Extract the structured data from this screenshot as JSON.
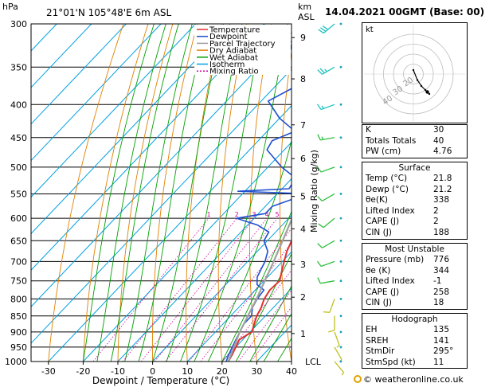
{
  "chart_data": {
    "type": "line",
    "title": "21°01'N  105°48'E  6m  ASL",
    "xlabel": "Dewpoint / Temperature (°C)",
    "ylabel": "hPa",
    "right_label_km": "km",
    "right_label_asl": "ASL",
    "mixing_axis_label": "Mixing Ratio (g/kg)",
    "xlim": [
      -35,
      40
    ],
    "ylim": [
      1000,
      300
    ],
    "x_ticks": [
      -30,
      -20,
      -10,
      0,
      10,
      20,
      30,
      40
    ],
    "pressure_ticks": [
      300,
      350,
      400,
      450,
      500,
      550,
      600,
      650,
      700,
      750,
      800,
      850,
      900,
      950,
      1000
    ],
    "km_ticks": [
      {
        "km": "1",
        "p": 905
      },
      {
        "km": "2",
        "p": 795
      },
      {
        "km": "3",
        "p": 707
      },
      {
        "km": "4",
        "p": 623
      },
      {
        "km": "5",
        "p": 555
      },
      {
        "km": "6",
        "p": 485
      },
      {
        "km": "7",
        "p": 430
      },
      {
        "km": "8",
        "p": 365
      },
      {
        "km": "9",
        "p": 315
      }
    ],
    "lcl_label": "LCL",
    "lcl_p": 1003,
    "mixing_ratio_labels": [
      "1",
      "2",
      "3",
      "4",
      "5",
      "8",
      "10",
      "15",
      "20",
      "25"
    ],
    "mixing_ratio_values": [
      1,
      2,
      3,
      4,
      5,
      8,
      10,
      15,
      20,
      25
    ],
    "legend": [
      "Temperature",
      "Dewpoint",
      "Parcel Trajectory",
      "Dry Adiabat",
      "Wet Adiabat",
      "Isotherm",
      "Mixing Ratio"
    ],
    "series": [
      {
        "name": "Temperature",
        "color": "#e03030",
        "points": [
          [
            1000,
            21.8
          ],
          [
            975,
            21.0
          ],
          [
            950,
            20.0
          ],
          [
            925,
            19.0
          ],
          [
            900,
            20.5
          ],
          [
            875,
            19.0
          ],
          [
            850,
            17.5
          ],
          [
            825,
            16.5
          ],
          [
            800,
            15.0
          ],
          [
            775,
            14.2
          ],
          [
            750,
            14.5
          ],
          [
            725,
            12.5
          ],
          [
            700,
            10.5
          ],
          [
            675,
            8.5
          ],
          [
            650,
            7.0
          ],
          [
            625,
            5.0
          ],
          [
            600,
            3.5
          ],
          [
            575,
            2.0
          ],
          [
            550,
            0.5
          ],
          [
            525,
            -1.5
          ],
          [
            500,
            -3.5
          ],
          [
            475,
            -6.0
          ],
          [
            450,
            -9.0
          ],
          [
            425,
            -11.5
          ],
          [
            400,
            -14.0
          ],
          [
            375,
            -18.0
          ],
          [
            350,
            -22.0
          ],
          [
            325,
            -26.0
          ],
          [
            300,
            -31.0
          ]
        ]
      },
      {
        "name": "Dewpoint",
        "color": "#2050d0",
        "points": [
          [
            1000,
            21.2
          ],
          [
            975,
            20.0
          ],
          [
            950,
            19.0
          ],
          [
            925,
            18.0
          ],
          [
            900,
            17.0
          ],
          [
            875,
            16.0
          ],
          [
            850,
            16.0
          ],
          [
            825,
            14.0
          ],
          [
            800,
            13.0
          ],
          [
            775,
            12.5
          ],
          [
            760,
            9.0
          ],
          [
            740,
            7.0
          ],
          [
            700,
            5.0
          ],
          [
            675,
            3.0
          ],
          [
            650,
            -1.0
          ],
          [
            630,
            -2.0
          ],
          [
            615,
            -7.0
          ],
          [
            600,
            -15.0
          ],
          [
            590,
            -8.0
          ],
          [
            575,
            -8.0
          ],
          [
            560,
            -4.0
          ],
          [
            550,
            -1.0
          ],
          [
            545,
            -22.0
          ],
          [
            540,
            -8.0
          ],
          [
            520,
            -9.0
          ],
          [
            500,
            -16.0
          ],
          [
            470,
            -25.0
          ],
          [
            455,
            -26.0
          ],
          [
            440,
            -22.0
          ],
          [
            420,
            -30.0
          ],
          [
            395,
            -38.0
          ],
          [
            360,
            -31.0
          ],
          [
            340,
            -42.0
          ],
          [
            320,
            -48.0
          ],
          [
            315,
            -40.0
          ],
          [
            305,
            -47.0
          ],
          [
            300,
            -46.0
          ]
        ]
      },
      {
        "name": "Parcel Trajectory",
        "color": "#a0a0a0",
        "points": [
          [
            1000,
            21.8
          ],
          [
            900,
            17.0
          ],
          [
            800,
            12.8
          ],
          [
            700,
            7.5
          ],
          [
            600,
            1.0
          ],
          [
            500,
            -7.0
          ],
          [
            450,
            -12.0
          ],
          [
            400,
            -17.5
          ],
          [
            350,
            -24.0
          ],
          [
            300,
            -32.0
          ]
        ]
      }
    ],
    "wind_barbs": [
      {
        "p": 300,
        "speed_kt": 30,
        "dir": 230
      },
      {
        "p": 350,
        "speed_kt": 25,
        "dir": 240
      },
      {
        "p": 400,
        "speed_kt": 15,
        "dir": 250
      },
      {
        "p": 450,
        "speed_kt": 15,
        "dir": 260
      },
      {
        "p": 500,
        "speed_kt": 10,
        "dir": 250
      },
      {
        "p": 550,
        "speed_kt": 10,
        "dir": 240
      },
      {
        "p": 600,
        "speed_kt": 10,
        "dir": 230
      },
      {
        "p": 650,
        "speed_kt": 10,
        "dir": 240
      },
      {
        "p": 700,
        "speed_kt": 10,
        "dir": 250
      },
      {
        "p": 750,
        "speed_kt": 10,
        "dir": 260
      },
      {
        "p": 800,
        "speed_kt": 10,
        "dir": 200
      },
      {
        "p": 850,
        "speed_kt": 10,
        "dir": 180
      },
      {
        "p": 900,
        "speed_kt": 5,
        "dir": 160
      },
      {
        "p": 950,
        "speed_kt": 5,
        "dir": 150
      },
      {
        "p": 1000,
        "speed_kt": 5,
        "dir": 140
      }
    ]
  },
  "header": {
    "datetime": "14.04.2021  00GMT  (Base: 00)"
  },
  "hodograph": {
    "label": "kt",
    "ring_labels": [
      "20",
      "30",
      "40"
    ],
    "trace_uv": [
      [
        0,
        2
      ],
      [
        2,
        -3
      ],
      [
        4,
        -6
      ],
      [
        6,
        -8
      ],
      [
        8,
        -10
      ]
    ],
    "storm_uv": [
      7,
      -9
    ]
  },
  "indices": {
    "rows": [
      {
        "label": "K",
        "value": "30"
      },
      {
        "label": "Totals Totals",
        "value": "40"
      },
      {
        "label": "PW (cm)",
        "value": "4.76"
      }
    ]
  },
  "surface": {
    "title": "Surface",
    "rows": [
      {
        "label": "Temp (°C)",
        "value": "21.8"
      },
      {
        "label": "Dewp (°C)",
        "value": "21.2"
      },
      {
        "label": "θe(K)",
        "value": "338"
      },
      {
        "label": "Lifted Index",
        "value": "2"
      },
      {
        "label": "CAPE (J)",
        "value": "2"
      },
      {
        "label": "CIN (J)",
        "value": "188"
      }
    ]
  },
  "most_unstable": {
    "title": "Most Unstable",
    "rows": [
      {
        "label": "Pressure (mb)",
        "value": "776"
      },
      {
        "label": "θe (K)",
        "value": "344"
      },
      {
        "label": "Lifted Index",
        "value": "-1"
      },
      {
        "label": "CAPE (J)",
        "value": "258"
      },
      {
        "label": "CIN (J)",
        "value": "18"
      }
    ]
  },
  "hodograph_table": {
    "title": "Hodograph",
    "rows": [
      {
        "label": "EH",
        "value": "135"
      },
      {
        "label": "SREH",
        "value": "141"
      },
      {
        "label": "StmDir",
        "value": "295°"
      },
      {
        "label": "StmSpd (kt)",
        "value": "11"
      }
    ]
  },
  "footer": {
    "copyright": "© weatheronline.co.uk"
  },
  "colors": {
    "temperature": "#e03030",
    "dewpoint": "#2050d0",
    "parcel": "#a0a0a0",
    "dry_adiabat": "#e08000",
    "wet_adiabat": "#00a000",
    "isotherm": "#00a0e0",
    "mixing_ratio": "#cc0099"
  }
}
